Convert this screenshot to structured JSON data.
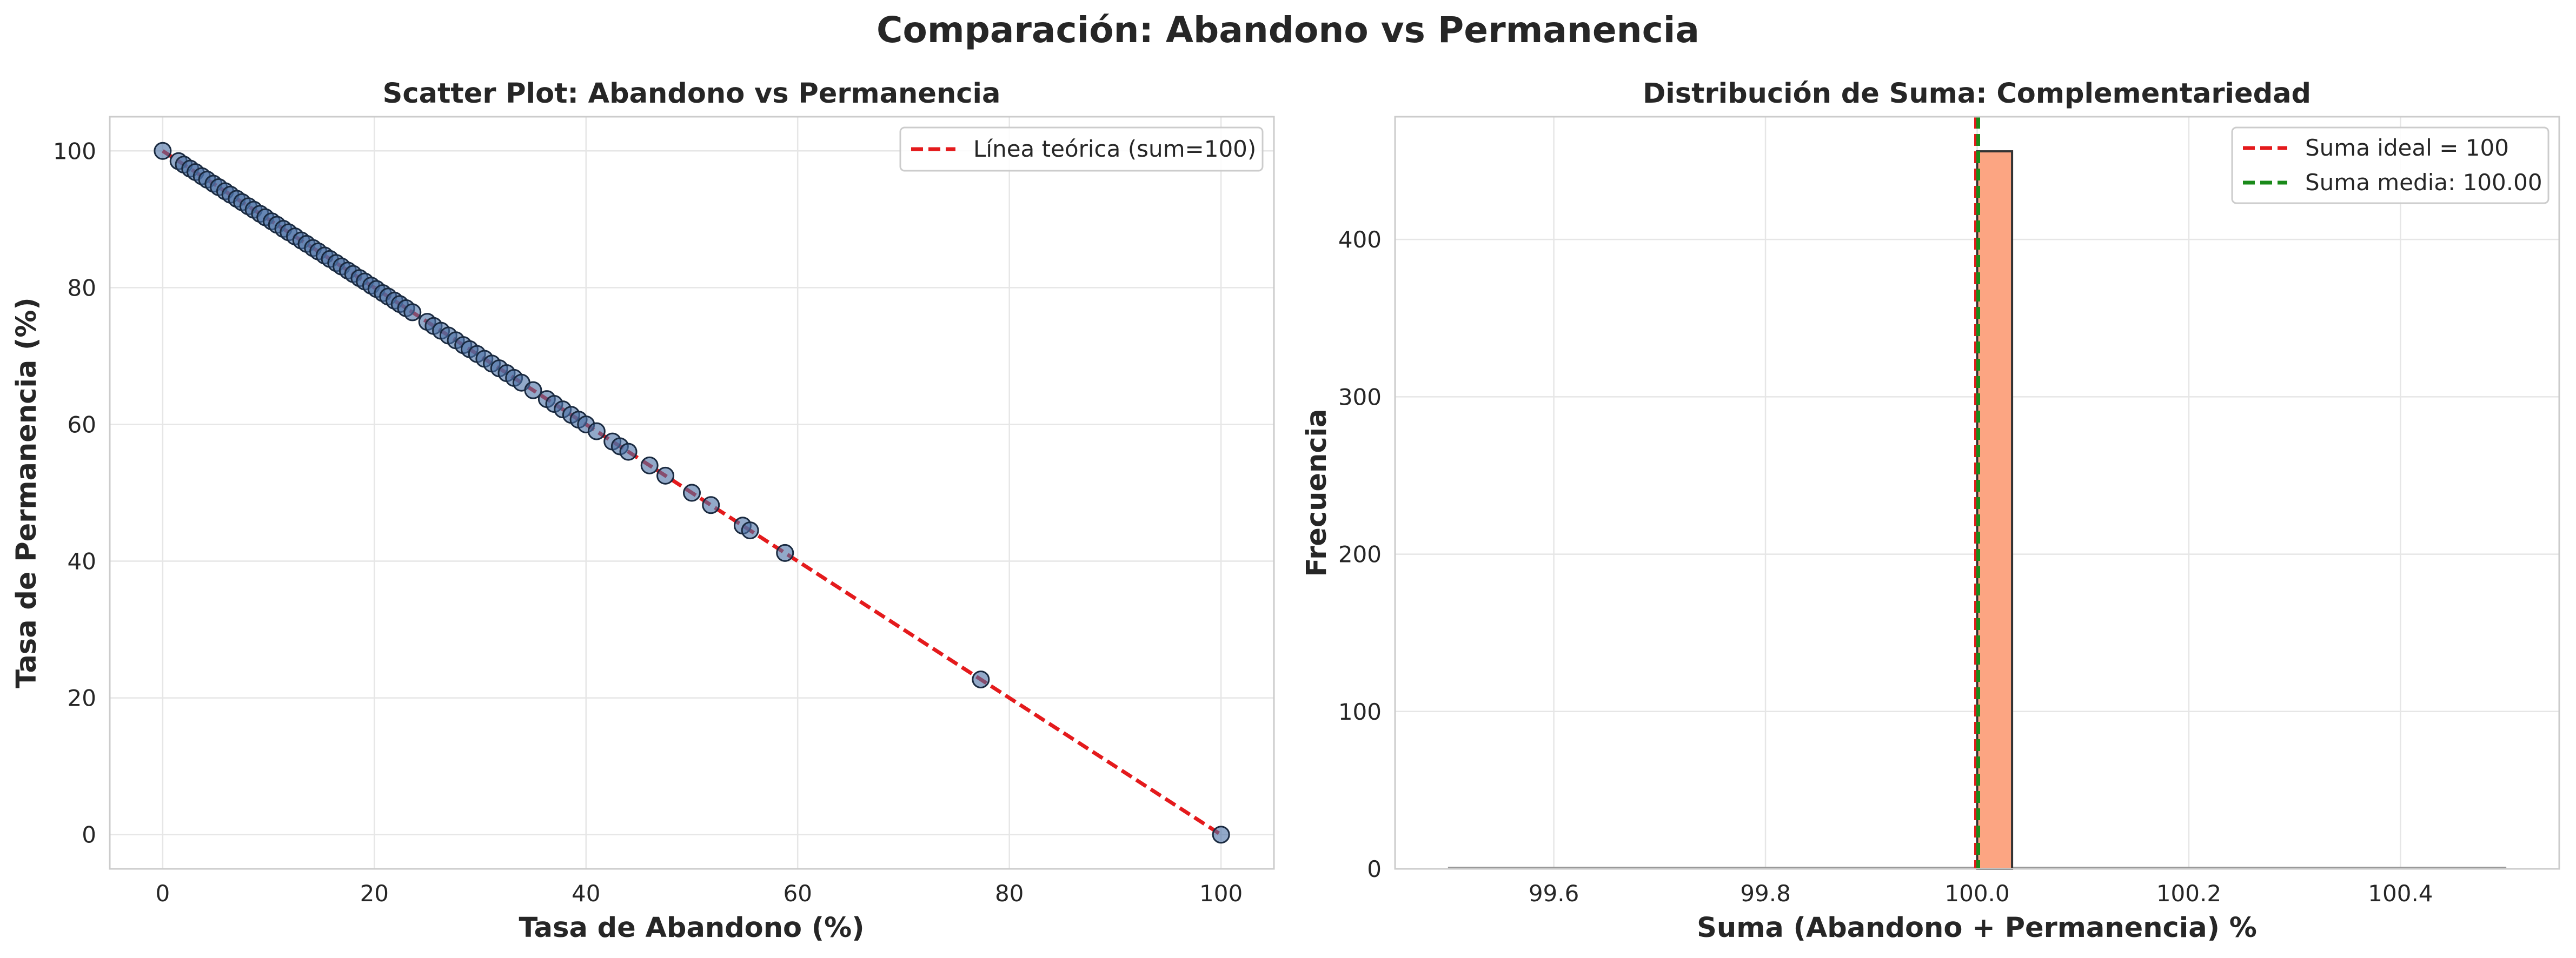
{
  "suptitle": "Comparación: Abandono vs Permanencia",
  "chart_data": [
    {
      "type": "scatter",
      "title": "Scatter Plot: Abandono vs Permanencia",
      "xlabel": "Tasa de Abandono (%)",
      "ylabel": "Tasa de Permanencia (%)",
      "xlim": [
        -5,
        105
      ],
      "ylim": [
        -5,
        105
      ],
      "xticks": [
        0,
        20,
        40,
        60,
        80,
        100
      ],
      "yticks": [
        0,
        20,
        40,
        60,
        80,
        100
      ],
      "grid": true,
      "legend_position": "top-right",
      "series": [
        {
          "type": "scatter",
          "color": "#4a6fa5",
          "edgecolor": "#1a2a40",
          "points": [
            [
              0.0,
              100.0
            ],
            [
              1.5,
              98.5
            ],
            [
              2.0,
              98.0
            ],
            [
              2.6,
              97.4
            ],
            [
              3.1,
              96.9
            ],
            [
              3.7,
              96.3
            ],
            [
              4.2,
              95.8
            ],
            [
              4.8,
              95.2
            ],
            [
              5.3,
              94.7
            ],
            [
              5.9,
              94.1
            ],
            [
              6.4,
              93.6
            ],
            [
              7.0,
              93.0
            ],
            [
              7.5,
              92.5
            ],
            [
              8.1,
              91.9
            ],
            [
              8.6,
              91.4
            ],
            [
              9.2,
              90.8
            ],
            [
              9.7,
              90.3
            ],
            [
              10.3,
              89.7
            ],
            [
              10.8,
              89.2
            ],
            [
              11.4,
              88.6
            ],
            [
              11.9,
              88.1
            ],
            [
              12.5,
              87.5
            ],
            [
              13.1,
              86.9
            ],
            [
              13.6,
              86.4
            ],
            [
              14.2,
              85.8
            ],
            [
              14.7,
              85.3
            ],
            [
              15.3,
              84.7
            ],
            [
              15.8,
              84.2
            ],
            [
              16.4,
              83.6
            ],
            [
              16.9,
              83.1
            ],
            [
              17.5,
              82.5
            ],
            [
              18.0,
              82.0
            ],
            [
              18.6,
              81.4
            ],
            [
              19.1,
              80.9
            ],
            [
              19.7,
              80.3
            ],
            [
              20.2,
              79.8
            ],
            [
              20.8,
              79.2
            ],
            [
              21.3,
              78.7
            ],
            [
              21.9,
              78.1
            ],
            [
              22.4,
              77.6
            ],
            [
              23.0,
              77.0
            ],
            [
              23.6,
              76.4
            ],
            [
              25.0,
              75.0
            ],
            [
              25.6,
              74.4
            ],
            [
              26.3,
              73.7
            ],
            [
              27.0,
              73.0
            ],
            [
              27.7,
              72.3
            ],
            [
              28.4,
              71.6
            ],
            [
              29.0,
              71.0
            ],
            [
              29.7,
              70.3
            ],
            [
              30.4,
              69.6
            ],
            [
              31.1,
              68.9
            ],
            [
              31.8,
              68.2
            ],
            [
              32.5,
              67.5
            ],
            [
              33.2,
              66.8
            ],
            [
              33.9,
              66.1
            ],
            [
              35.0,
              65.0
            ],
            [
              36.3,
              63.7
            ],
            [
              37.0,
              63.0
            ],
            [
              37.8,
              62.2
            ],
            [
              38.6,
              61.4
            ],
            [
              39.3,
              60.7
            ],
            [
              40.0,
              60.0
            ],
            [
              41.0,
              59.0
            ],
            [
              42.5,
              57.5
            ],
            [
              43.2,
              56.8
            ],
            [
              44.0,
              56.0
            ],
            [
              46.0,
              54.0
            ],
            [
              47.5,
              52.5
            ],
            [
              50.0,
              50.0
            ],
            [
              51.8,
              48.2
            ],
            [
              54.8,
              45.2
            ],
            [
              55.5,
              44.5
            ],
            [
              58.8,
              41.2
            ],
            [
              77.3,
              22.7
            ],
            [
              100.0,
              0.0
            ]
          ]
        },
        {
          "type": "line",
          "name": "Línea teórica (sum=100)",
          "color": "#e41a1c",
          "dash": "dashed",
          "x": [
            0,
            100
          ],
          "y": [
            100,
            0
          ]
        }
      ]
    },
    {
      "type": "bar",
      "title": "Distribución de Suma: Complementariedad",
      "xlabel": "Suma (Abandono + Permanencia) %",
      "ylabel": "Frecuencia",
      "xlim": [
        99.45,
        100.55
      ],
      "ylim": [
        0,
        478
      ],
      "xticks": [
        99.6,
        99.8,
        100.0,
        100.2,
        100.4
      ],
      "xtick_labels": [
        "99.6",
        "99.8",
        "100.0",
        "100.2",
        "100.4"
      ],
      "yticks": [
        0,
        100,
        200,
        300,
        400
      ],
      "grid": true,
      "legend_position": "top-right",
      "bins": [
        {
          "x0": 100.0,
          "x1": 100.033,
          "count": 456
        }
      ],
      "baseline": {
        "x0": 99.5,
        "x1": 100.5
      },
      "bar_color": "#fca582",
      "bar_edge": "#333333",
      "vlines": [
        {
          "name": "Suma ideal = 100",
          "x": 100.0,
          "color": "#e41a1c",
          "dash": "dashed"
        },
        {
          "name": "Suma media: 100.00",
          "x": 100.0,
          "color": "#1a8a1a",
          "dash": "dashed"
        }
      ]
    }
  ]
}
